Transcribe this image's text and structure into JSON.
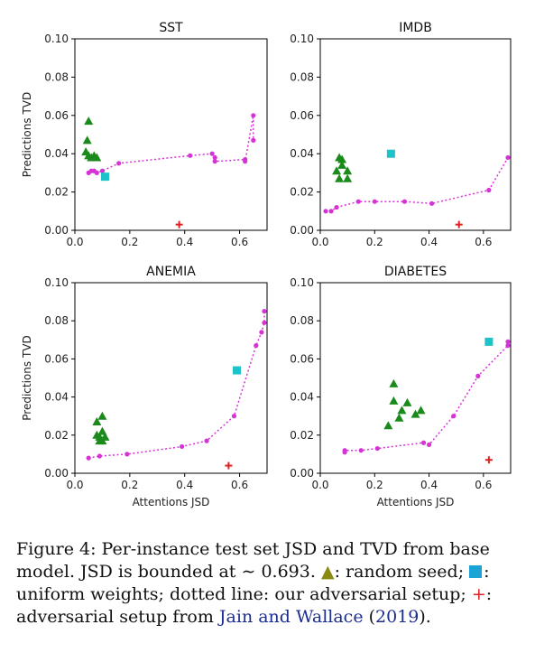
{
  "chart_data": [
    {
      "type": "scatter",
      "title": "SST",
      "xlabel": "",
      "ylabel": "Predictions TVD",
      "xlim": [
        0,
        0.7
      ],
      "ylim": [
        0,
        0.1
      ],
      "xticks": [
        "0.0",
        "0.2",
        "0.4",
        "0.6"
      ],
      "yticks": [
        "0.00",
        "0.02",
        "0.04",
        "0.06",
        "0.08",
        "0.10"
      ],
      "random_seed": [
        [
          0.05,
          0.057
        ],
        [
          0.045,
          0.047
        ],
        [
          0.04,
          0.041
        ],
        [
          0.05,
          0.039
        ],
        [
          0.06,
          0.038
        ],
        [
          0.07,
          0.039
        ],
        [
          0.08,
          0.038
        ]
      ],
      "uniform_weights": [
        [
          0.11,
          0.028
        ]
      ],
      "adversarial_ours": [
        [
          0.05,
          0.03
        ],
        [
          0.06,
          0.031
        ],
        [
          0.07,
          0.031
        ],
        [
          0.08,
          0.03
        ],
        [
          0.1,
          0.031
        ],
        [
          0.16,
          0.035
        ],
        [
          0.42,
          0.039
        ],
        [
          0.5,
          0.04
        ],
        [
          0.51,
          0.038
        ],
        [
          0.51,
          0.036
        ],
        [
          0.62,
          0.037
        ],
        [
          0.62,
          0.036
        ],
        [
          0.65,
          0.06
        ],
        [
          0.65,
          0.047
        ]
      ],
      "adversarial_jain_wallace": [
        [
          0.38,
          0.003
        ]
      ]
    },
    {
      "type": "scatter",
      "title": "IMDB",
      "xlabel": "",
      "ylabel": "",
      "xlim": [
        0,
        0.7
      ],
      "ylim": [
        0,
        0.1
      ],
      "xticks": [
        "0.0",
        "0.2",
        "0.4",
        "0.6"
      ],
      "yticks": [
        "0.00",
        "0.02",
        "0.04",
        "0.06",
        "0.08",
        "0.10"
      ],
      "random_seed": [
        [
          0.07,
          0.038
        ],
        [
          0.08,
          0.037
        ],
        [
          0.08,
          0.034
        ],
        [
          0.06,
          0.031
        ],
        [
          0.1,
          0.031
        ],
        [
          0.07,
          0.027
        ],
        [
          0.1,
          0.027
        ]
      ],
      "uniform_weights": [
        [
          0.26,
          0.04
        ]
      ],
      "adversarial_ours": [
        [
          0.02,
          0.01
        ],
        [
          0.04,
          0.01
        ],
        [
          0.06,
          0.012
        ],
        [
          0.14,
          0.015
        ],
        [
          0.2,
          0.015
        ],
        [
          0.31,
          0.015
        ],
        [
          0.41,
          0.014
        ],
        [
          0.62,
          0.021
        ],
        [
          0.69,
          0.038
        ]
      ],
      "adversarial_jain_wallace": [
        [
          0.51,
          0.003
        ]
      ]
    },
    {
      "type": "scatter",
      "title": "ANEMIA",
      "xlabel": "Attentions JSD",
      "ylabel": "Predictions TVD",
      "xlim": [
        0,
        0.7
      ],
      "ylim": [
        0,
        0.1
      ],
      "xticks": [
        "0.0",
        "0.2",
        "0.4",
        "0.6"
      ],
      "yticks": [
        "0.00",
        "0.02",
        "0.04",
        "0.06",
        "0.08",
        "0.10"
      ],
      "random_seed": [
        [
          0.1,
          0.03
        ],
        [
          0.08,
          0.027
        ],
        [
          0.1,
          0.022
        ],
        [
          0.08,
          0.02
        ],
        [
          0.09,
          0.019
        ],
        [
          0.11,
          0.019
        ],
        [
          0.1,
          0.017
        ],
        [
          0.09,
          0.017
        ]
      ],
      "uniform_weights": [
        [
          0.59,
          0.054
        ]
      ],
      "adversarial_ours": [
        [
          0.05,
          0.008
        ],
        [
          0.09,
          0.009
        ],
        [
          0.19,
          0.01
        ],
        [
          0.39,
          0.014
        ],
        [
          0.48,
          0.017
        ],
        [
          0.58,
          0.03
        ],
        [
          0.66,
          0.067
        ],
        [
          0.68,
          0.074
        ],
        [
          0.69,
          0.079
        ],
        [
          0.69,
          0.085
        ]
      ],
      "adversarial_jain_wallace": [
        [
          0.56,
          0.004
        ]
      ]
    },
    {
      "type": "scatter",
      "title": "DIABETES",
      "xlabel": "Attentions JSD",
      "ylabel": "",
      "xlim": [
        0,
        0.7
      ],
      "ylim": [
        0,
        0.1
      ],
      "xticks": [
        "0.0",
        "0.2",
        "0.4",
        "0.6"
      ],
      "yticks": [
        "0.00",
        "0.02",
        "0.04",
        "0.06",
        "0.08",
        "0.10"
      ],
      "random_seed": [
        [
          0.27,
          0.047
        ],
        [
          0.27,
          0.038
        ],
        [
          0.32,
          0.037
        ],
        [
          0.3,
          0.033
        ],
        [
          0.37,
          0.033
        ],
        [
          0.35,
          0.031
        ],
        [
          0.29,
          0.029
        ],
        [
          0.25,
          0.025
        ]
      ],
      "uniform_weights": [
        [
          0.62,
          0.069
        ]
      ],
      "adversarial_ours": [
        [
          0.09,
          0.011
        ],
        [
          0.09,
          0.012
        ],
        [
          0.15,
          0.012
        ],
        [
          0.21,
          0.013
        ],
        [
          0.38,
          0.016
        ],
        [
          0.4,
          0.015
        ],
        [
          0.49,
          0.03
        ],
        [
          0.58,
          0.051
        ],
        [
          0.69,
          0.067
        ],
        [
          0.69,
          0.069
        ]
      ],
      "adversarial_jain_wallace": [
        [
          0.62,
          0.007
        ]
      ]
    }
  ],
  "colors": {
    "random_seed": "#1a8a1a",
    "uniform_weights": "#1cc3c8",
    "adversarial_ours": "#d633d6",
    "adversarial_jain_wallace": "#e02020"
  },
  "caption": {
    "prefix": "Figure 4: Per-instance test set JSD and TVD from base model. JSD is bounded at ",
    "math": "∼ 0.693.",
    "triangle_glyph": "▲",
    "after_triangle": ": random seed;",
    "after_square": ": uniform weights; dotted line: our adversarial setup;",
    "plus_glyph": "+",
    "after_plus": ": adversarial setup from ",
    "citation_authors": "Jain and Wallace",
    "citation_open": " (",
    "citation_year": "2019",
    "citation_close": ")."
  }
}
